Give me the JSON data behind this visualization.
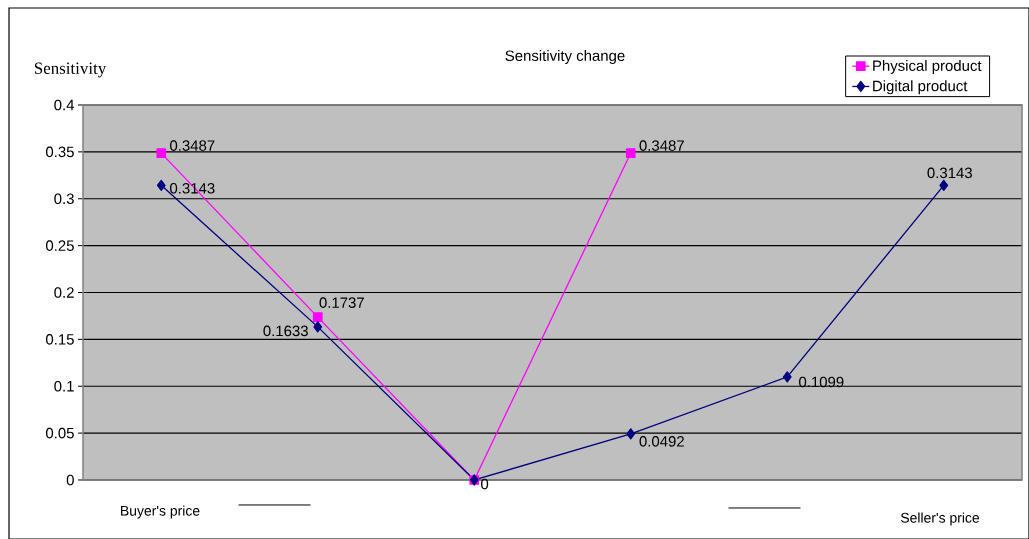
{
  "chart_data": {
    "type": "line",
    "title": "Sensitivity change",
    "ylabel": "Sensitivity",
    "categories": [
      null,
      null,
      null,
      null,
      null,
      null
    ],
    "series": [
      {
        "name": "Physical product",
        "color": "#ff00ff",
        "marker": "square",
        "values": [
          0.3487,
          0.1737,
          0,
          0.3487,
          null,
          null
        ],
        "value_labels": [
          "0.3487",
          "0.1737",
          null,
          "0.3487",
          null,
          null
        ]
      },
      {
        "name": "Digital product",
        "color": "#000080",
        "marker": "diamond",
        "values": [
          0.3143,
          0.1633,
          0,
          0.0492,
          0.1099,
          0.3143
        ],
        "value_labels": [
          "0.3143",
          "0.1633",
          "0",
          "0.0492",
          "0.1099",
          "0.3143"
        ]
      }
    ],
    "ylim": [
      0,
      0.4
    ],
    "yticks": [
      0,
      0.05,
      0.1,
      0.15,
      0.2,
      0.25,
      0.3,
      0.35,
      0.4
    ],
    "grid": "y",
    "legend": "top right",
    "tick_labels": "y",
    "annotations": [
      "Buyer's price",
      "Seller's price"
    ]
  }
}
